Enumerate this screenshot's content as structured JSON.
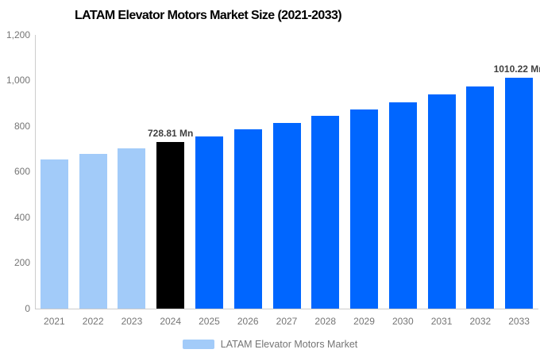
{
  "title": "LATAM Elevator Motors Market Size (2021-2033)",
  "legend": {
    "label": "LATAM Elevator Motors Market"
  },
  "colors": {
    "historical_bar": "#A2CBF9",
    "base_year_bar": "#000000",
    "forecast_bar": "#0066FF",
    "axis_line": "#CCCCCC",
    "axis_text": "#757575",
    "data_label_text": "#404040",
    "title_text": "#000000",
    "background": "#FFFFFF"
  },
  "chart_data": {
    "type": "bar",
    "title": "LATAM Elevator Motors Market Size (2021-2033)",
    "xlabel": "",
    "ylabel": "",
    "unit": "Mn",
    "categories": [
      "2021",
      "2022",
      "2023",
      "2024",
      "2025",
      "2026",
      "2027",
      "2028",
      "2029",
      "2030",
      "2031",
      "2032",
      "2033"
    ],
    "series": [
      {
        "name": "LATAM Elevator Motors Market",
        "values": [
          653,
          678,
          703,
          728.81,
          755,
          784,
          812,
          843,
          872,
          904,
          938,
          973,
          1010.22
        ]
      }
    ],
    "bar_colors": [
      "#A2CBF9",
      "#A2CBF9",
      "#A2CBF9",
      "#000000",
      "#0066FF",
      "#0066FF",
      "#0066FF",
      "#0066FF",
      "#0066FF",
      "#0066FF",
      "#0066FF",
      "#0066FF",
      "#0066FF"
    ],
    "y_ticks": [
      {
        "value": 1200,
        "label": "1,200"
      },
      {
        "value": 1000,
        "label": "1,000"
      },
      {
        "value": 800,
        "label": "800"
      },
      {
        "value": 600,
        "label": "600"
      },
      {
        "value": 400,
        "label": "400"
      },
      {
        "value": 200,
        "label": "200"
      },
      {
        "value": 0,
        "label": "0"
      }
    ],
    "ylim": [
      0,
      1200
    ],
    "grid": false,
    "legend_position": "bottom",
    "data_labels": [
      {
        "category": "2024",
        "text": "728.81 Mn"
      },
      {
        "category": "2033",
        "text": "1010.22 Mn"
      }
    ]
  }
}
